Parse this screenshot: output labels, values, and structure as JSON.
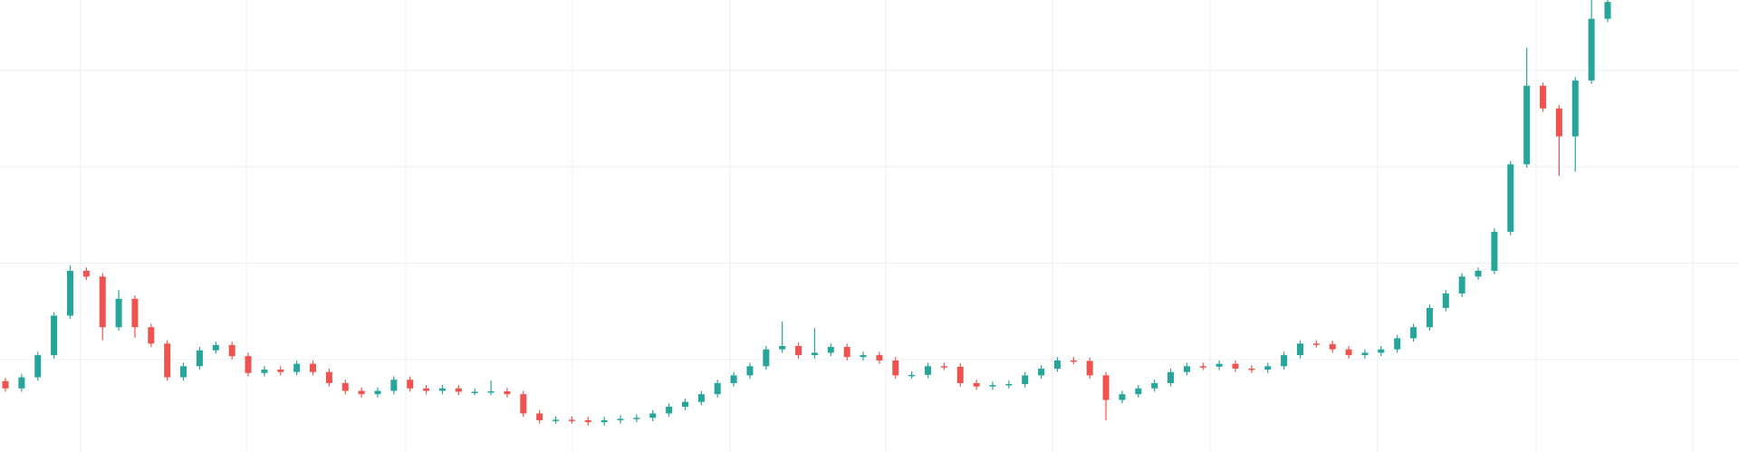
{
  "chart_data": {
    "type": "candlestick",
    "open": [
      15.5,
      14.0,
      16.3,
      20.9,
      29.1,
      38.4,
      37.2,
      26.7,
      32.6,
      26.7,
      23.3,
      16.3,
      18.6,
      21.9,
      23.0,
      20.7,
      17.2,
      17.9,
      17.4,
      19.1,
      17.4,
      15.1,
      13.5,
      12.8,
      13.5,
      15.8,
      14.0,
      13.5,
      14.0,
      13.3,
      13.3,
      13.4,
      12.8,
      8.8,
      7.4,
      7.5,
      7.4,
      7.0,
      7.4,
      7.7,
      7.9,
      8.8,
      10.2,
      11.2,
      12.8,
      15.1,
      16.7,
      18.6,
      22.1,
      22.8,
      20.9,
      21.4,
      22.6,
      20.5,
      20.9,
      19.8,
      16.7,
      16.8,
      18.6,
      18.5,
      15.1,
      14.4,
      14.7,
      14.9,
      16.7,
      18.1,
      19.8,
      19.7,
      16.7,
      11.6,
      12.8,
      14.0,
      15.1,
      17.4,
      18.6,
      18.5,
      19.1,
      18.1,
      17.9,
      18.6,
      20.9,
      23.3,
      23.2,
      22.1,
      20.9,
      21.4,
      22.1,
      24.4,
      26.7,
      30.7,
      33.7,
      37.2,
      38.4,
      46.5,
      60.5,
      76.8,
      72.1,
      66.3,
      77.9,
      90.7
    ],
    "high": [
      16.2,
      17.0,
      21.6,
      29.8,
      39.5,
      39.1,
      37.9,
      34.4,
      33.3,
      27.4,
      24.0,
      19.3,
      22.6,
      23.7,
      23.7,
      21.4,
      18.6,
      18.6,
      19.8,
      19.8,
      18.1,
      15.8,
      14.2,
      14.2,
      16.5,
      16.5,
      14.7,
      14.7,
      14.7,
      14.0,
      15.6,
      14.1,
      13.5,
      9.5,
      8.2,
      8.2,
      8.1,
      8.1,
      8.4,
      8.6,
      9.5,
      10.9,
      11.9,
      13.5,
      15.8,
      17.4,
      19.3,
      22.8,
      27.9,
      23.5,
      26.5,
      23.3,
      23.3,
      21.6,
      21.6,
      20.5,
      17.5,
      19.3,
      19.3,
      19.2,
      15.8,
      15.4,
      15.6,
      17.4,
      18.8,
      20.5,
      20.5,
      20.4,
      17.4,
      13.5,
      14.7,
      15.8,
      18.1,
      19.3,
      19.3,
      19.8,
      19.8,
      18.8,
      19.3,
      21.6,
      24.0,
      24.0,
      23.9,
      22.8,
      22.1,
      22.8,
      25.1,
      27.4,
      31.4,
      34.4,
      37.9,
      39.1,
      47.2,
      61.2,
      84.7,
      77.5,
      72.8,
      78.6,
      96,
      96
    ],
    "low": [
      13.3,
      13.3,
      15.6,
      20.2,
      28.4,
      36.5,
      24.0,
      26.0,
      24.5,
      22.6,
      15.6,
      15.6,
      17.9,
      21.2,
      20.0,
      16.5,
      16.5,
      16.7,
      16.7,
      16.7,
      14.4,
      12.8,
      12.1,
      12.1,
      12.8,
      13.3,
      12.8,
      12.8,
      12.6,
      12.6,
      12.6,
      12.1,
      8.1,
      6.7,
      6.7,
      6.7,
      6.3,
      6.3,
      6.7,
      7.0,
      7.2,
      8.1,
      9.5,
      10.5,
      12.1,
      14.4,
      16.0,
      17.9,
      21.4,
      20.2,
      20.2,
      20.7,
      19.8,
      19.8,
      19.1,
      16.0,
      16.0,
      16.1,
      17.8,
      14.4,
      13.7,
      13.7,
      14.0,
      14.2,
      16.0,
      17.4,
      19.0,
      16.0,
      7.4,
      10.9,
      12.1,
      13.3,
      14.4,
      16.7,
      17.8,
      17.8,
      17.4,
      17.2,
      17.2,
      17.9,
      20.2,
      22.5,
      21.4,
      20.2,
      20.2,
      20.7,
      21.4,
      23.7,
      26.0,
      30.0,
      33.0,
      36.5,
      37.7,
      45.8,
      59.8,
      71.4,
      58.1,
      59.0,
      77.2,
      90.0
    ],
    "close": [
      14.0,
      16.3,
      20.9,
      29.1,
      38.4,
      37.2,
      26.7,
      32.6,
      26.7,
      23.3,
      16.3,
      18.6,
      21.9,
      23.0,
      20.7,
      17.2,
      17.9,
      17.4,
      19.1,
      17.4,
      15.1,
      13.5,
      12.8,
      13.5,
      15.8,
      14.0,
      13.5,
      14.0,
      13.3,
      13.3,
      13.4,
      12.8,
      8.8,
      7.4,
      7.5,
      7.4,
      7.0,
      7.4,
      7.7,
      7.9,
      8.8,
      10.2,
      11.2,
      12.8,
      15.1,
      16.7,
      18.6,
      22.1,
      22.8,
      20.9,
      21.4,
      22.6,
      20.5,
      20.9,
      19.8,
      16.7,
      16.8,
      18.6,
      18.5,
      15.1,
      14.4,
      14.7,
      14.9,
      16.7,
      18.1,
      19.8,
      19.7,
      16.7,
      11.6,
      12.8,
      14.0,
      15.1,
      17.4,
      18.6,
      18.5,
      19.1,
      18.1,
      17.9,
      18.6,
      20.9,
      23.3,
      23.2,
      22.1,
      20.9,
      21.4,
      22.1,
      24.4,
      26.7,
      30.7,
      33.7,
      37.2,
      38.4,
      46.5,
      60.5,
      76.8,
      72.1,
      66.3,
      77.9,
      90.7,
      94.2
    ],
    "up_color": "#26a69a",
    "down_color": "#ef5350",
    "ylim": [
      0.8,
      94.6
    ],
    "yticks": [
      20,
      40,
      60,
      80
    ],
    "grid": true
  }
}
